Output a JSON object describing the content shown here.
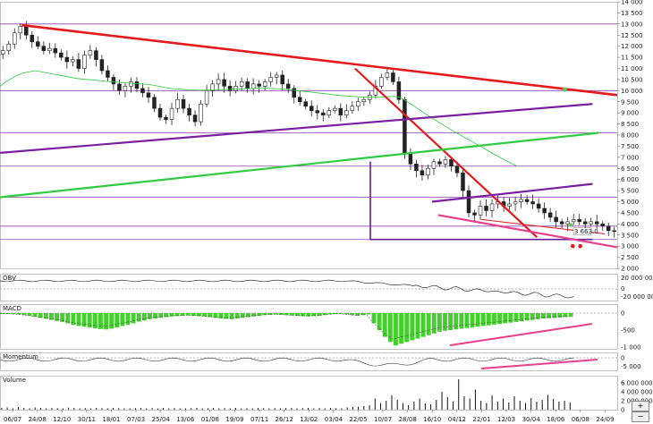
{
  "chart_data": [
    {
      "panel": "price",
      "type": "candlestick",
      "grid": true,
      "ylim": [
        2000,
        14000
      ],
      "yticks": [
        "14 000",
        "13 500",
        "13 000",
        "12 500",
        "12 000",
        "11 500",
        "11 000",
        "10 500",
        "10 000",
        "9 500",
        "9 000",
        "8 500",
        "8 000",
        "7 500",
        "7 000",
        "6 500",
        "6 000",
        "5 500",
        "5 000",
        "4 500",
        "4 000",
        "3 500",
        "3 000",
        "2 500",
        "2 000"
      ],
      "price_marker": "3 663.0",
      "close_series": [
        11800,
        12100,
        12600,
        12900,
        12500,
        12200,
        12000,
        11800,
        11900,
        11700,
        11500,
        11300,
        11400,
        11000,
        11600,
        11800,
        11400,
        10900,
        10600,
        10300,
        10000,
        10200,
        10400,
        10100,
        9900,
        9700,
        9200,
        8800,
        8700,
        9200,
        9600,
        9200,
        8900,
        8600,
        9400,
        10000,
        10300,
        10500,
        10200,
        10000,
        10200,
        10400,
        10100,
        10300,
        10200,
        10400,
        10600,
        10700,
        10300,
        10100,
        9700,
        9500,
        9300,
        9100,
        9000,
        8900,
        9100,
        9200,
        8900,
        9100,
        9300,
        9500,
        9600,
        9800,
        10200,
        10600,
        10800,
        10400,
        9600,
        7200,
        6700,
        6400,
        6200,
        6500,
        6800,
        6700,
        6900,
        6600,
        6300,
        5500,
        4500,
        4400,
        4800,
        4600,
        4900,
        5000,
        4800,
        4900,
        5000,
        5100,
        5000,
        4900,
        4700,
        4500,
        4300,
        4100,
        4000,
        4100,
        4200,
        4100,
        4000,
        4100,
        4000,
        3900,
        3700,
        3663
      ],
      "moving_average": [
        10200,
        10400,
        10550,
        10700,
        10800,
        10850,
        10900,
        10850,
        10800,
        10750,
        10700,
        10650,
        10600,
        10550,
        10520,
        10500,
        10480,
        10450,
        10420,
        10400,
        10380,
        10360,
        10340,
        10320,
        10300,
        10280,
        10250,
        10200,
        10150,
        10100,
        10080,
        10060,
        10040,
        10030,
        10020,
        10020,
        10030,
        10040,
        10050,
        10060,
        10070,
        10080,
        10090,
        10100,
        10110,
        10110,
        10100,
        10090,
        10070,
        10050,
        10020,
        9990,
        9960,
        9930,
        9900,
        9870,
        9840,
        9810,
        9780,
        9760,
        9740,
        9720,
        9710,
        9700,
        9700,
        9710,
        9730,
        9740,
        9700,
        9550,
        9380,
        9200,
        9020,
        8850,
        8680,
        8520,
        8360,
        8200,
        8050,
        7900,
        7750,
        7600,
        7450,
        7300,
        7150,
        7000,
        6860,
        6720,
        6600
      ],
      "trendlines": [
        {
          "color": "#e41a1c",
          "from": [
            0.035,
            12950
          ],
          "to": [
            1.0,
            9800
          ]
        },
        {
          "color": "#e41a1c",
          "from": [
            0.575,
            11000
          ],
          "to": [
            0.87,
            3400
          ]
        },
        {
          "color": "#e41a1c",
          "from": [
            0.78,
            4200
          ],
          "to": [
            0.98,
            3550
          ]
        },
        {
          "color": "#7b1fa2",
          "from": [
            0.0,
            7200
          ],
          "to": [
            0.96,
            9400
          ]
        },
        {
          "color": "#7b1fa2",
          "from": [
            0.7,
            5000
          ],
          "to": [
            0.96,
            5800
          ]
        },
        {
          "color": "#2ecc40",
          "from": [
            0.0,
            5200
          ],
          "to": [
            0.97,
            8100
          ]
        },
        {
          "color": "#e83e8c",
          "from": [
            0.71,
            4400
          ],
          "to": [
            1.0,
            2950
          ]
        }
      ],
      "horizontal_levels": [
        13000,
        10000,
        8100,
        6600,
        5200,
        3900,
        3300
      ],
      "support_rect": {
        "x0": 0.6,
        "x1": 0.96,
        "y_top": 6800,
        "y_bottom": 3300
      }
    },
    {
      "panel": "obv",
      "type": "line",
      "title": "OBV",
      "yticks": [
        "20 000 000",
        "0",
        "-20 000 000"
      ]
    },
    {
      "panel": "macd",
      "type": "bar",
      "title": "MACD",
      "yticks": [
        "0",
        "-500",
        "-1 000"
      ],
      "histogram": [
        -20,
        -25,
        -30,
        -40,
        -60,
        -80,
        -110,
        -140,
        -170,
        -200,
        -230,
        -260,
        -300,
        -350,
        -380,
        -400,
        -420,
        -450,
        -470,
        -480,
        -460,
        -420,
        -380,
        -350,
        -300,
        -250,
        -220,
        -180,
        -160,
        -140,
        -120,
        -100,
        -90,
        -80,
        -70,
        -80,
        -90,
        -100,
        -120,
        -140,
        -160,
        -170,
        -180,
        -160,
        -140,
        -120,
        -100,
        -80,
        -60,
        -50,
        -40,
        -50,
        -60,
        -70,
        -80,
        -90,
        -100,
        -90,
        -80,
        -60,
        -40,
        -30,
        -20,
        -40,
        -60,
        -80,
        -60,
        -40,
        -300,
        -500,
        -700,
        -850,
        -950,
        -900,
        -850,
        -800,
        -750,
        -700,
        -650,
        -600,
        -550,
        -520,
        -500,
        -480,
        -460,
        -440,
        -420,
        -400,
        -380,
        -360,
        -340,
        -320,
        -300,
        -280,
        -260,
        -240,
        -220,
        -200,
        -180,
        -160,
        -150,
        -140,
        -130,
        -120,
        -110
      ]
    },
    {
      "panel": "momentum",
      "type": "line",
      "title": "Momentum",
      "yticks": [
        "0",
        "-5 000"
      ]
    },
    {
      "panel": "volume",
      "type": "bar",
      "title": "Volume",
      "yticks": [
        "6 000 000",
        "4 000 000",
        "2 000 000",
        "0"
      ],
      "values": [
        400000,
        500000,
        300000,
        600000,
        400000,
        300000,
        500000,
        400000,
        300000,
        400000,
        350000,
        300000,
        450000,
        400000,
        300000,
        350000,
        300000,
        400000,
        350000,
        300000,
        400000,
        350000,
        300000,
        300000,
        350000,
        400000,
        300000,
        350000,
        300000,
        400000,
        300000,
        350000,
        300000,
        300000,
        350000,
        400000,
        300000,
        350000,
        400000,
        300000,
        350000,
        300000,
        400000,
        300000,
        350000,
        300000,
        400000,
        350000,
        300000,
        350000,
        300000,
        400000,
        350000,
        300000,
        350000,
        400000,
        300000,
        350000,
        300000,
        400000,
        350000,
        300000,
        500000,
        600000,
        700000,
        800000,
        1000000,
        2500000,
        1500000,
        2000000,
        3200000,
        2200000,
        1500000,
        1000000,
        1800000,
        2500000,
        1400000,
        1200000,
        2200000,
        4000000,
        2800000,
        1800000,
        6800000,
        3000000,
        2500000,
        4500000,
        2000000,
        1500000,
        3200000,
        1800000,
        2500000,
        1600000,
        3000000,
        2000000,
        1500000,
        2600000,
        1800000,
        2200000,
        3300000,
        2400000,
        1800000,
        2000000,
        1600000
      ]
    }
  ],
  "x_axis": {
    "tick_labels": [
      "06/07",
      "24/08",
      "12/10",
      "30/11",
      "18/01",
      "07/03",
      "25/04",
      "13/06",
      "01/08",
      "19/09",
      "07/11",
      "26/12",
      "13/02",
      "03/04",
      "22/05",
      "10/07",
      "28/08",
      "16/10",
      "04/12",
      "22/01",
      "12/03",
      "30/04",
      "18/06",
      "06/08",
      "24/09"
    ]
  },
  "zoom": {
    "plus_label": "+",
    "minus_label": "−"
  }
}
